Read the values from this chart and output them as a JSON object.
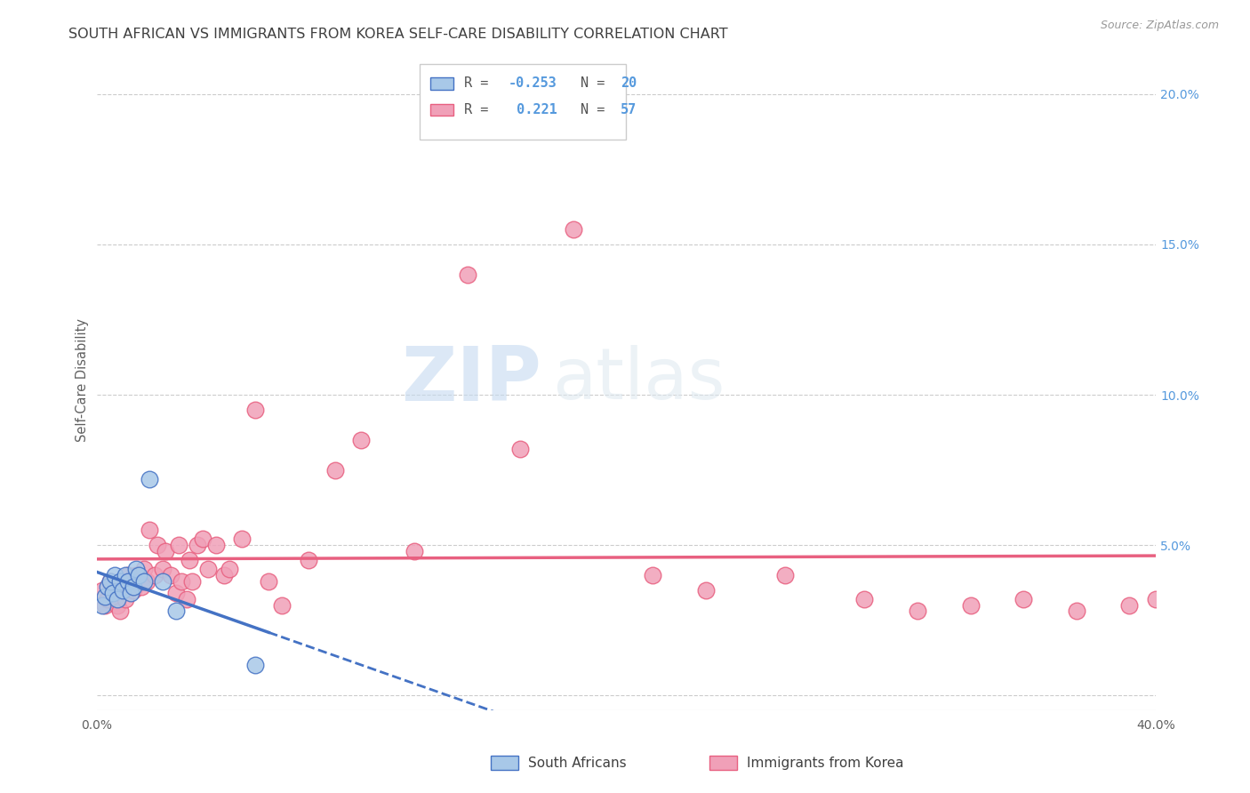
{
  "title": "SOUTH AFRICAN VS IMMIGRANTS FROM KOREA SELF-CARE DISABILITY CORRELATION CHART",
  "source": "Source: ZipAtlas.com",
  "ylabel": "Self-Care Disability",
  "xlim": [
    0.0,
    0.4
  ],
  "ylim": [
    -0.005,
    0.215
  ],
  "color_blue": "#a8c8e8",
  "color_pink": "#f0a0b8",
  "line_color_blue": "#4472c4",
  "line_color_pink": "#e86080",
  "watermark_zip": "ZIP",
  "watermark_atlas": "atlas",
  "background_color": "#ffffff",
  "grid_color": "#cccccc",
  "title_color": "#404040",
  "axis_label_color": "#606060",
  "right_tick_color": "#5599dd",
  "south_africans_x": [
    0.002,
    0.003,
    0.004,
    0.005,
    0.006,
    0.007,
    0.008,
    0.009,
    0.01,
    0.011,
    0.012,
    0.013,
    0.014,
    0.015,
    0.016,
    0.018,
    0.02,
    0.025,
    0.03,
    0.06
  ],
  "south_africans_y": [
    0.03,
    0.033,
    0.036,
    0.038,
    0.034,
    0.04,
    0.032,
    0.038,
    0.035,
    0.04,
    0.038,
    0.034,
    0.036,
    0.042,
    0.04,
    0.038,
    0.072,
    0.038,
    0.028,
    0.01
  ],
  "korea_x": [
    0.002,
    0.003,
    0.004,
    0.005,
    0.006,
    0.007,
    0.008,
    0.009,
    0.01,
    0.011,
    0.012,
    0.013,
    0.014,
    0.015,
    0.016,
    0.017,
    0.018,
    0.019,
    0.02,
    0.022,
    0.023,
    0.025,
    0.026,
    0.028,
    0.03,
    0.031,
    0.032,
    0.034,
    0.035,
    0.036,
    0.038,
    0.04,
    0.042,
    0.045,
    0.048,
    0.05,
    0.055,
    0.06,
    0.065,
    0.07,
    0.08,
    0.09,
    0.1,
    0.12,
    0.14,
    0.16,
    0.18,
    0.21,
    0.23,
    0.26,
    0.29,
    0.31,
    0.33,
    0.35,
    0.37,
    0.39,
    0.4
  ],
  "korea_y": [
    0.035,
    0.03,
    0.032,
    0.038,
    0.036,
    0.034,
    0.03,
    0.028,
    0.036,
    0.032,
    0.04,
    0.038,
    0.035,
    0.04,
    0.038,
    0.036,
    0.042,
    0.038,
    0.055,
    0.04,
    0.05,
    0.042,
    0.048,
    0.04,
    0.034,
    0.05,
    0.038,
    0.032,
    0.045,
    0.038,
    0.05,
    0.052,
    0.042,
    0.05,
    0.04,
    0.042,
    0.052,
    0.095,
    0.038,
    0.03,
    0.045,
    0.075,
    0.085,
    0.048,
    0.14,
    0.082,
    0.155,
    0.04,
    0.035,
    0.04,
    0.032,
    0.028,
    0.03,
    0.032,
    0.028,
    0.03,
    0.032
  ],
  "sa_line_x0": 0.0,
  "sa_line_x1": 0.065,
  "sa_line_xdash": 0.3,
  "ko_line_x0": 0.0,
  "ko_line_x1": 0.4
}
